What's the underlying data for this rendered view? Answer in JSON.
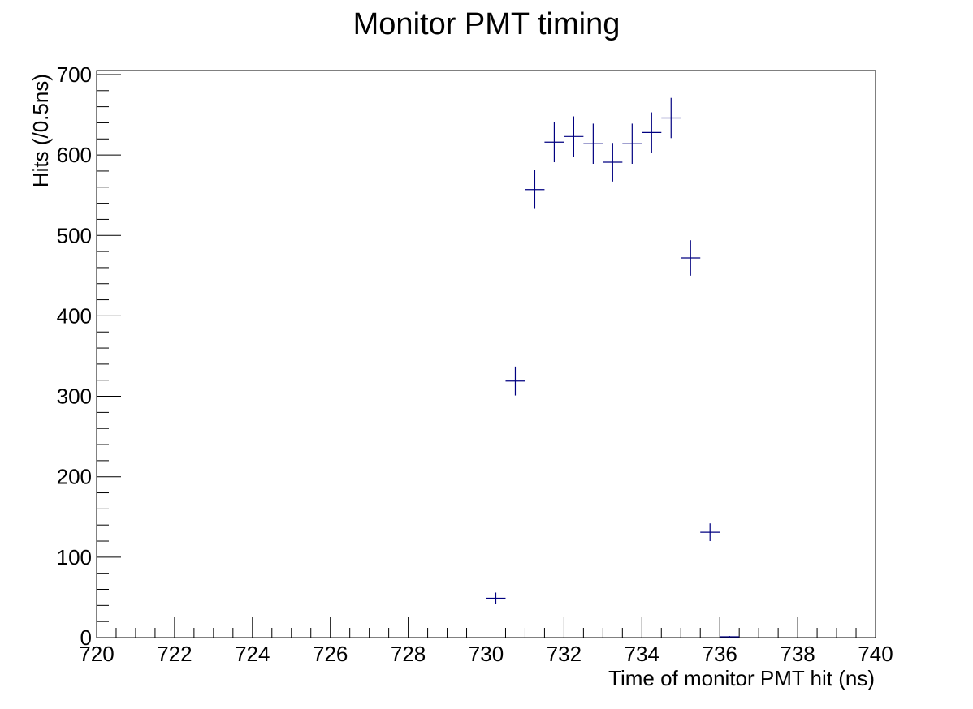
{
  "chart_data": {
    "type": "scatter",
    "title": "Monitor PMT timing",
    "xlabel": "Time of monitor PMT hit (ns)",
    "ylabel": "Hits (/0.5ns)",
    "xlim": [
      720,
      740
    ],
    "ylim": [
      0,
      705
    ],
    "x_ticks": [
      "720",
      "722",
      "724",
      "726",
      "728",
      "730",
      "732",
      "734",
      "736",
      "738",
      "740"
    ],
    "y_ticks": [
      "0",
      "100",
      "200",
      "300",
      "400",
      "500",
      "600",
      "700"
    ],
    "grid": false,
    "legend": "none",
    "marker_color": "#000080",
    "bin_width": 0.5,
    "series": [
      {
        "points": [
          {
            "x": 730.25,
            "y": 49,
            "yerr": 7
          },
          {
            "x": 730.75,
            "y": 319,
            "yerr": 18
          },
          {
            "x": 731.25,
            "y": 557,
            "yerr": 24
          },
          {
            "x": 731.75,
            "y": 616,
            "yerr": 25
          },
          {
            "x": 732.25,
            "y": 623,
            "yerr": 25
          },
          {
            "x": 732.75,
            "y": 614,
            "yerr": 25
          },
          {
            "x": 733.25,
            "y": 591,
            "yerr": 24
          },
          {
            "x": 733.75,
            "y": 614,
            "yerr": 25
          },
          {
            "x": 734.25,
            "y": 628,
            "yerr": 25
          },
          {
            "x": 734.75,
            "y": 646,
            "yerr": 25
          },
          {
            "x": 735.25,
            "y": 472,
            "yerr": 22
          },
          {
            "x": 735.75,
            "y": 131,
            "yerr": 11
          },
          {
            "x": 736.25,
            "y": 1,
            "yerr": 1
          }
        ]
      }
    ]
  }
}
